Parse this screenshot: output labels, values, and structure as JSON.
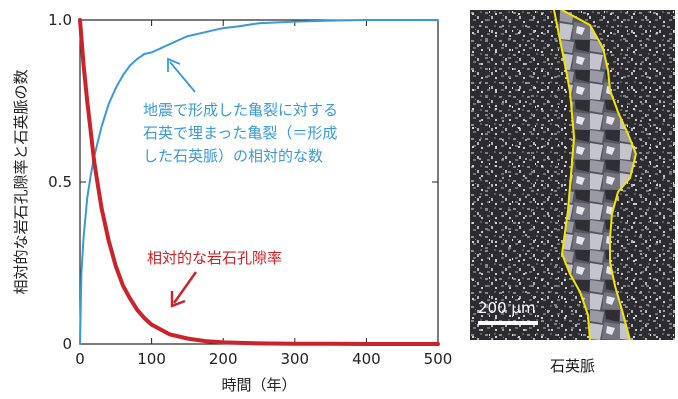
{
  "chart_data": {
    "type": "line",
    "xlabel": "時間（年）",
    "ylabel": "相対的な岩石孔隙率と石英脈の数",
    "xlim": [
      0,
      500
    ],
    "ylim": [
      0,
      1.0
    ],
    "x_ticks": [
      "0",
      "100",
      "200",
      "300",
      "400",
      "500"
    ],
    "y_ticks": [
      "0",
      "0.5",
      "1.0"
    ],
    "grid": false,
    "series": [
      {
        "name": "地震で形成した亀裂に対する石英で埋まった亀裂（＝形成した石英脈）の相対的な数",
        "color": "#3a9ad9",
        "x": [
          0,
          2,
          5,
          10,
          15,
          20,
          30,
          40,
          50,
          60,
          70,
          80,
          90,
          100,
          110,
          120,
          130,
          140,
          150,
          160,
          170,
          180,
          190,
          200,
          220,
          250,
          300,
          350,
          400,
          450,
          500
        ],
        "y": [
          0.0,
          0.22,
          0.33,
          0.45,
          0.52,
          0.58,
          0.67,
          0.74,
          0.79,
          0.83,
          0.86,
          0.88,
          0.895,
          0.9,
          0.91,
          0.92,
          0.93,
          0.94,
          0.95,
          0.955,
          0.96,
          0.965,
          0.97,
          0.975,
          0.98,
          0.99,
          0.995,
          0.998,
          1.0,
          1.0,
          1.0
        ]
      },
      {
        "name": "相対的な岩石孔隙率",
        "color": "#cc2229",
        "x": [
          0,
          5,
          10,
          20,
          30,
          40,
          50,
          60,
          70,
          80,
          90,
          100,
          125,
          150,
          175,
          200,
          250,
          300,
          350,
          400,
          450,
          500
        ],
        "y": [
          1.0,
          0.86,
          0.75,
          0.56,
          0.42,
          0.32,
          0.24,
          0.18,
          0.14,
          0.105,
          0.08,
          0.06,
          0.03,
          0.017,
          0.009,
          0.005,
          0.002,
          0.001,
          0.0005,
          0.0,
          0.0,
          0.0
        ]
      }
    ],
    "annotations": {
      "blue_lines": [
        "地震で形成した亀裂に対する",
        "石英で埋まった亀裂（＝形成",
        "した石英脈）の相対的な数"
      ],
      "red": "相対的な岩石孔隙率"
    }
  },
  "photo": {
    "caption": "石英脈",
    "scale_bar": "200 µm"
  },
  "colors": {
    "blue": "#3a9ad9",
    "red": "#cc2229",
    "vein_outline": "#f2e600"
  }
}
